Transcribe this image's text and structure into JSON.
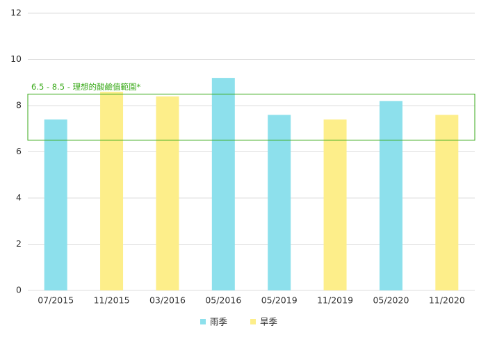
{
  "chart_data": {
    "type": "bar",
    "categories": [
      "07/2015",
      "11/2015",
      "03/2016",
      "05/2016",
      "05/2019",
      "11/2019",
      "05/2020",
      "11/2020"
    ],
    "series": [
      {
        "name": "雨季",
        "color": "#8de0ec",
        "values": [
          7.4,
          null,
          null,
          9.2,
          7.6,
          null,
          8.2,
          null
        ]
      },
      {
        "name": "旱季",
        "color": "#fdee8a",
        "values": [
          null,
          8.6,
          8.4,
          null,
          null,
          7.4,
          null,
          7.6
        ]
      }
    ],
    "ylim": [
      0,
      12
    ],
    "yticks": [
      0,
      2,
      4,
      6,
      8,
      10,
      12
    ],
    "grid": true,
    "band": {
      "range": [
        6.5,
        8.5
      ],
      "label": "6.5 - 8.5 - 理想的酸鹼值範圍*",
      "color": "#3aaa1a"
    },
    "legend": "bottom"
  }
}
